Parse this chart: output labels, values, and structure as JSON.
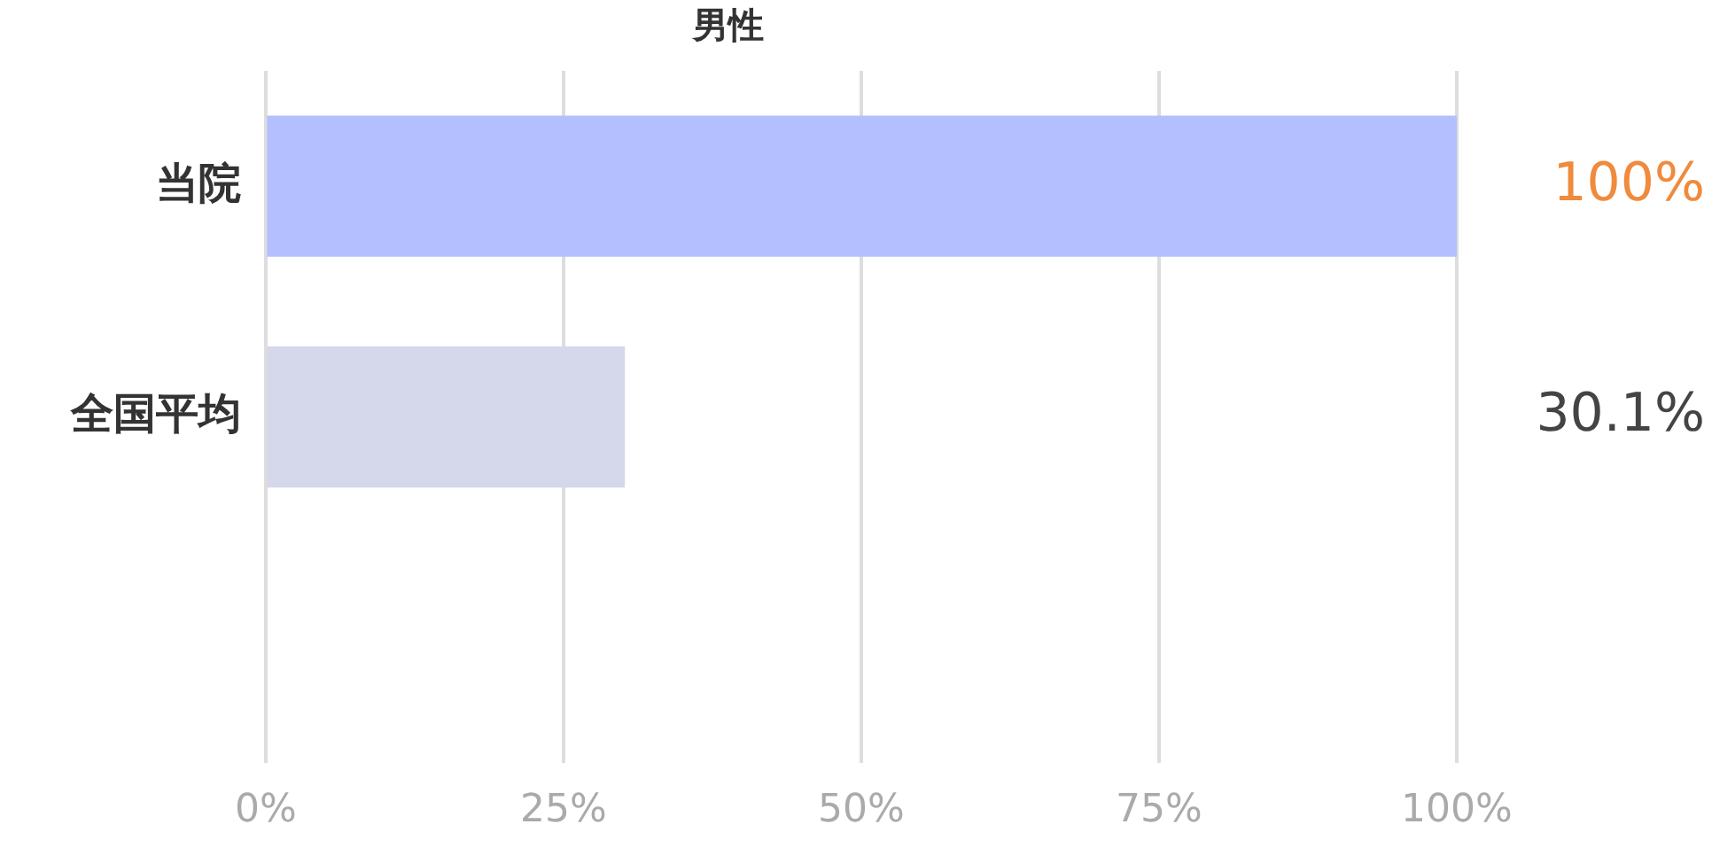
{
  "chart_data": {
    "type": "bar",
    "orientation": "horizontal",
    "title": "男性",
    "categories": [
      "当院",
      "全国平均"
    ],
    "values": [
      100,
      30.1
    ],
    "colors": [
      "#b3bfff",
      "#d4d8ea"
    ],
    "value_labels": [
      "100%",
      "30.1%"
    ],
    "xlim": [
      0,
      100
    ],
    "xticks": [
      {
        "value": 0,
        "label": "0%"
      },
      {
        "value": 25,
        "label": "25%"
      },
      {
        "value": 50,
        "label": "50%"
      },
      {
        "value": 75,
        "label": "75%"
      },
      {
        "value": 100,
        "label": "100%"
      }
    ],
    "grid": "x",
    "legend": false
  }
}
